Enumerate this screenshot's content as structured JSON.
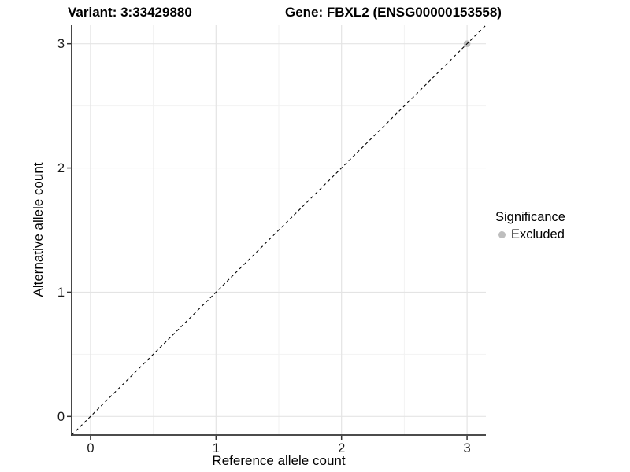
{
  "chart_data": {
    "type": "scatter",
    "title_variant": "Variant: 3:33429880",
    "title_gene": "Gene: FBXL2 (ENSG00000153558)",
    "xlabel": "Reference allele count",
    "ylabel": "Alternative allele count",
    "xlim": [
      -0.15,
      3.15
    ],
    "ylim": [
      -0.15,
      3.15
    ],
    "x_ticks": [
      0,
      1,
      2,
      3
    ],
    "y_ticks": [
      0,
      1,
      2,
      3
    ],
    "minor_x": [
      0.5,
      1.5,
      2.5
    ],
    "minor_y": [
      0.5,
      1.5,
      2.5
    ],
    "abline": {
      "equation": "y=x",
      "style": "dashed",
      "color": "#000000"
    },
    "series": [
      {
        "name": "Excluded",
        "color": "#bebebe",
        "points": [
          [
            3,
            3
          ]
        ]
      }
    ],
    "legend": {
      "title": "Significance",
      "position": "right",
      "entries": [
        {
          "label": "Excluded",
          "color": "#bebebe"
        }
      ]
    },
    "grid": {
      "major_color": "#e4e4e4",
      "minor_color": "#f2f2f2",
      "background": "#ffffff"
    },
    "axis_color": "#333333",
    "tick_label_color": "#1a1a1a"
  }
}
